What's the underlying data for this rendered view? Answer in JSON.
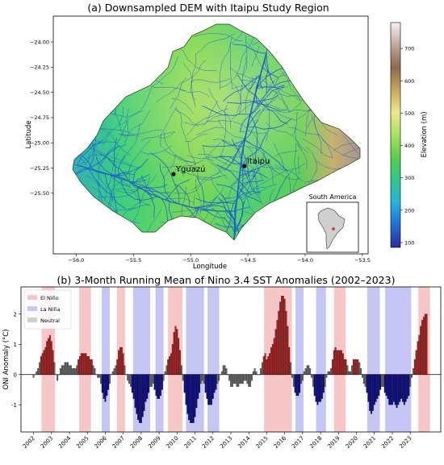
{
  "panel_a": {
    "title": "(a) Downsampled DEM with Itaipu Study Region",
    "xlabel": "Longitude",
    "ylabel": "Latitude",
    "x_ticks": [
      "−56.0",
      "−55.5",
      "−55.0",
      "−54.5",
      "−54.0",
      "−53.5"
    ],
    "y_ticks": [
      "−24.00",
      "−24.25",
      "−24.50",
      "−24.75",
      "−25.00",
      "−25.25",
      "−25.50"
    ],
    "colorbar_label": "Elevation (m)",
    "colorbar_ticks": [
      "700",
      "600",
      "500",
      "400",
      "300",
      "200",
      "100"
    ],
    "locations": [
      {
        "name": "Yguazú",
        "lon": -55.15,
        "lat": -25.31
      },
      {
        "name": "Itaipu",
        "lon": -54.53,
        "lat": -25.23
      }
    ],
    "inset_title": "South America",
    "colormap": [
      "#2b2c96",
      "#1f6fd6",
      "#27b3df",
      "#2dc98a",
      "#57cf4c",
      "#a9e25d",
      "#eee88c",
      "#c9a85c",
      "#8c6a4e",
      "#bfa79a",
      "#f6f2f2"
    ]
  },
  "chart_data": {
    "type": "bar",
    "title": "(b) 3-Month Running Mean of Nino 3.4 SST Anomalies (2002–2023)",
    "ylabel": "ONI Anomaly (°C)",
    "xlabel": "",
    "ylim": [
      -1.9,
      2.9
    ],
    "y_ticks": [
      -1,
      0,
      1,
      2
    ],
    "x_tick_labels": [
      "2002",
      "2003",
      "2004",
      "2005",
      "2006",
      "2007",
      "2008",
      "2009",
      "2010",
      "2011",
      "2012",
      "2013",
      "2014",
      "2015",
      "2016",
      "2017",
      "2018",
      "2019",
      "2020",
      "2021",
      "2022",
      "2023"
    ],
    "legend": [
      "El Niño",
      "La Niña",
      "Neutral"
    ],
    "legend_position": "top-left",
    "colors": {
      "el_nino_bar": "#b22222",
      "la_nina_bar": "#0a0a8c",
      "neutral_bar": "#6b6b6b",
      "el_nino_band": "#f7c6c6",
      "la_nina_band": "#c6c6f5"
    },
    "el_nino_periods": [
      [
        2002.45,
        2003.2
      ],
      [
        2004.55,
        2005.2
      ],
      [
        2006.65,
        2007.1
      ],
      [
        2009.5,
        2010.3
      ],
      [
        2014.85,
        2016.4
      ],
      [
        2018.75,
        2019.4
      ],
      [
        2023.45,
        2024.1
      ]
    ],
    "la_nina_periods": [
      [
        2005.8,
        2006.25
      ],
      [
        2007.55,
        2008.5
      ],
      [
        2008.8,
        2009.25
      ],
      [
        2010.5,
        2011.5
      ],
      [
        2011.7,
        2012.35
      ],
      [
        2016.6,
        2017.05
      ],
      [
        2017.75,
        2018.3
      ],
      [
        2020.6,
        2021.3
      ],
      [
        2021.6,
        2023.05
      ]
    ],
    "monthly_oni": [
      -0.1,
      0.0,
      0.1,
      0.2,
      0.4,
      0.6,
      0.7,
      0.8,
      0.9,
      1.1,
      1.2,
      1.3,
      1.1,
      0.8,
      0.4,
      0.0,
      -0.2,
      0.0,
      0.2,
      0.3,
      0.3,
      0.4,
      0.4,
      0.4,
      0.3,
      0.3,
      0.2,
      0.2,
      0.2,
      0.3,
      0.5,
      0.6,
      0.7,
      0.7,
      0.7,
      0.7,
      0.6,
      0.6,
      0.5,
      0.5,
      0.3,
      0.2,
      0.0,
      -0.1,
      -0.1,
      -0.3,
      -0.6,
      -0.8,
      -0.9,
      -0.7,
      -0.5,
      -0.3,
      0.0,
      0.1,
      0.2,
      0.3,
      0.5,
      0.8,
      0.9,
      0.9,
      0.7,
      0.3,
      0.0,
      -0.2,
      -0.3,
      -0.4,
      -0.6,
      -0.8,
      -1.1,
      -1.3,
      -1.5,
      -1.6,
      -1.6,
      -1.4,
      -1.2,
      -0.9,
      -0.8,
      -0.6,
      -0.4,
      -0.4,
      -0.3,
      -0.5,
      -0.7,
      -0.8,
      -0.8,
      -0.7,
      -0.5,
      -0.2,
      0.1,
      0.3,
      0.5,
      0.6,
      0.7,
      1.0,
      1.4,
      1.6,
      1.5,
      1.2,
      0.8,
      0.3,
      -0.2,
      -0.6,
      -1.0,
      -1.3,
      -1.5,
      -1.6,
      -1.6,
      -1.6,
      -1.4,
      -1.1,
      -0.8,
      -0.6,
      -0.3,
      -0.2,
      -0.3,
      -0.6,
      -0.8,
      -1.0,
      -1.0,
      -1.0,
      -0.8,
      -0.6,
      -0.5,
      -0.3,
      -0.2,
      0.0,
      0.1,
      0.3,
      0.3,
      0.2,
      0.0,
      -0.2,
      -0.4,
      -0.4,
      -0.3,
      -0.3,
      -0.4,
      -0.4,
      -0.3,
      -0.3,
      -0.3,
      -0.2,
      -0.2,
      -0.3,
      -0.4,
      -0.4,
      -0.2,
      0.1,
      0.2,
      0.1,
      0.0,
      0.0,
      0.2,
      0.4,
      0.6,
      0.7,
      0.5,
      0.6,
      0.7,
      0.9,
      1.0,
      1.2,
      1.5,
      1.8,
      2.1,
      2.4,
      2.6,
      2.6,
      2.5,
      2.1,
      1.6,
      0.9,
      0.4,
      -0.1,
      -0.4,
      -0.6,
      -0.7,
      -0.7,
      -0.6,
      -0.3,
      -0.2,
      0.1,
      0.2,
      0.3,
      0.3,
      0.2,
      -0.1,
      -0.4,
      -0.7,
      -0.9,
      -1.0,
      -0.9,
      -0.9,
      -0.8,
      -0.6,
      -0.4,
      -0.1,
      0.1,
      0.1,
      0.2,
      0.5,
      0.8,
      0.9,
      0.8,
      0.8,
      0.8,
      0.8,
      0.7,
      0.5,
      0.5,
      0.3,
      0.1,
      0.1,
      0.3,
      0.5,
      0.5,
      0.5,
      0.5,
      0.4,
      0.2,
      -0.1,
      -0.3,
      -0.4,
      -0.6,
      -0.9,
      -1.2,
      -1.3,
      -1.2,
      -1.0,
      -0.9,
      -0.8,
      -0.7,
      -0.5,
      -0.4,
      -0.4,
      -0.6,
      -0.7,
      -0.8,
      -1.0,
      -1.0,
      -1.0,
      -0.9,
      -1.0,
      -1.1,
      -1.0,
      -0.9,
      -0.8,
      -0.9,
      -1.0,
      -0.9,
      -0.8,
      -0.7,
      -0.4,
      -0.1,
      0.2,
      0.5,
      0.8,
      1.1,
      1.3,
      1.6,
      1.8,
      1.9,
      2.0,
      2.0
    ]
  }
}
